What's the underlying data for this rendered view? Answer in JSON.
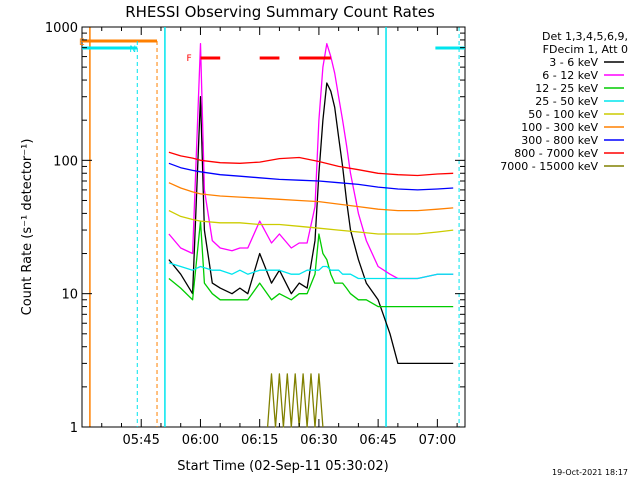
{
  "chart_data": {
    "type": "line",
    "title": "RHESSI Observing Summary Count Rates",
    "xlabel": "Start Time (02-Sep-11 05:30:02)",
    "ylabel": "Count Rate (s⁻¹ detector⁻¹)",
    "y_scale": "log",
    "ylim": [
      1,
      1000
    ],
    "xlim_minutes": [
      0,
      97
    ],
    "x_ticks": [
      {
        "label": "05:45",
        "min": 15
      },
      {
        "label": "06:00",
        "min": 30
      },
      {
        "label": "06:15",
        "min": 45
      },
      {
        "label": "06:30",
        "min": 60
      },
      {
        "label": "06:45",
        "min": 75
      },
      {
        "label": "07:00",
        "min": 90
      }
    ],
    "y_ticks": [
      {
        "label": "1",
        "v": 1
      },
      {
        "label": "10",
        "v": 10
      },
      {
        "label": "100",
        "v": 100
      },
      {
        "label": "1000",
        "v": 1000
      }
    ],
    "legend_header": [
      "Det 1,3,4,5,6,9,",
      "FDecim 1, Att 0"
    ],
    "legend_position": "right",
    "series": [
      {
        "name": "3 - 6 keV",
        "color": "#000000",
        "x": [
          22,
          25,
          28,
          30,
          31,
          33,
          35,
          38,
          40,
          42,
          45,
          48,
          50,
          53,
          55,
          57,
          59,
          60,
          61,
          62,
          63,
          64,
          65,
          66,
          67,
          68,
          70,
          72,
          75,
          78,
          80,
          85,
          90,
          94
        ],
        "y": [
          18,
          14,
          10,
          300,
          30,
          12,
          11,
          10,
          11,
          10,
          20,
          12,
          15,
          10,
          12,
          11,
          25,
          80,
          200,
          380,
          330,
          250,
          150,
          90,
          50,
          30,
          18,
          12,
          9,
          5,
          3,
          3,
          3,
          3
        ]
      },
      {
        "name": "6 - 12 keV",
        "color": "#ff00ff",
        "x": [
          22,
          25,
          28,
          30,
          31,
          33,
          35,
          38,
          40,
          42,
          45,
          48,
          50,
          53,
          55,
          57,
          59,
          60,
          61,
          62,
          63,
          64,
          65,
          66,
          67,
          68,
          70,
          72,
          75,
          78,
          80,
          85,
          90,
          94
        ],
        "y": [
          28,
          22,
          20,
          750,
          60,
          25,
          22,
          21,
          22,
          22,
          35,
          24,
          28,
          22,
          24,
          24,
          45,
          200,
          500,
          750,
          600,
          450,
          300,
          200,
          130,
          80,
          40,
          25,
          16,
          14,
          13,
          13,
          14,
          14
        ]
      },
      {
        "name": "12 - 25 keV",
        "color": "#00cc00",
        "x": [
          22,
          25,
          28,
          30,
          31,
          33,
          35,
          38,
          40,
          42,
          45,
          48,
          50,
          53,
          55,
          57,
          59,
          60,
          61,
          62,
          63,
          64,
          65,
          66,
          67,
          68,
          70,
          72,
          75,
          78,
          80,
          85,
          90,
          94
        ],
        "y": [
          13,
          11,
          9,
          35,
          12,
          10,
          9,
          9,
          9,
          9,
          12,
          9,
          10,
          9,
          10,
          10,
          14,
          28,
          20,
          18,
          14,
          12,
          12,
          12,
          11,
          10,
          9,
          9,
          8,
          8,
          8,
          8,
          8,
          8
        ]
      },
      {
        "name": "25 - 50 keV",
        "color": "#00e5ee",
        "x": [
          22,
          25,
          28,
          30,
          33,
          35,
          38,
          40,
          42,
          45,
          48,
          50,
          53,
          55,
          57,
          59,
          60,
          61,
          62,
          63,
          64,
          65,
          66,
          67,
          68,
          70,
          72,
          75,
          78,
          80,
          85,
          90,
          94
        ],
        "y": [
          17,
          16,
          15,
          16,
          15,
          15,
          14,
          15,
          14,
          15,
          15,
          15,
          14,
          14,
          15,
          15,
          15,
          16,
          16,
          15,
          15,
          15,
          14,
          14,
          14,
          13,
          13,
          13,
          13,
          13,
          13,
          14,
          14
        ]
      },
      {
        "name": "50 - 100 keV",
        "color": "#cccc00",
        "x": [
          22,
          25,
          28,
          30,
          35,
          40,
          45,
          50,
          55,
          60,
          65,
          70,
          75,
          80,
          85,
          90,
          94
        ],
        "y": [
          42,
          38,
          36,
          35,
          34,
          34,
          33,
          33,
          32,
          31,
          30,
          29,
          28,
          28,
          28,
          29,
          30
        ]
      },
      {
        "name": "100 - 300 keV",
        "color": "#ff8000",
        "x": [
          22,
          25,
          28,
          30,
          35,
          40,
          45,
          50,
          55,
          60,
          65,
          70,
          75,
          80,
          85,
          90,
          94
        ],
        "y": [
          68,
          62,
          58,
          56,
          54,
          53,
          52,
          51,
          50,
          49,
          47,
          45,
          43,
          42,
          42,
          43,
          44
        ]
      },
      {
        "name": "300 - 800 keV",
        "color": "#0000ff",
        "x": [
          22,
          25,
          28,
          30,
          35,
          40,
          45,
          50,
          55,
          60,
          65,
          70,
          75,
          80,
          85,
          90,
          94
        ],
        "y": [
          95,
          88,
          84,
          82,
          78,
          76,
          74,
          72,
          71,
          70,
          68,
          66,
          63,
          61,
          60,
          61,
          62
        ]
      },
      {
        "name": "800 - 7000 keV",
        "color": "#ff0000",
        "x": [
          22,
          25,
          28,
          30,
          35,
          40,
          45,
          50,
          55,
          60,
          65,
          70,
          75,
          80,
          85,
          90,
          94
        ],
        "y": [
          115,
          108,
          104,
          100,
          96,
          95,
          97,
          103,
          105,
          98,
          90,
          85,
          80,
          78,
          77,
          79,
          80
        ]
      },
      {
        "name": "7000 - 15000 keV",
        "color": "#808000",
        "x": [
          47,
          48,
          49,
          50,
          51,
          52,
          53,
          54,
          55,
          56,
          57,
          58,
          59,
          60,
          61
        ],
        "y": [
          1,
          2.5,
          1,
          2.5,
          1,
          2.5,
          1,
          2.5,
          1,
          2.5,
          1,
          2.5,
          1,
          2.5,
          1
        ]
      }
    ],
    "flags": {
      "label": "F",
      "color": "#ff0000",
      "segments": [
        [
          30,
          35
        ],
        [
          45,
          50
        ],
        [
          55,
          63
        ]
      ]
    },
    "timestamp": "19-Oct-2021 18:17"
  }
}
